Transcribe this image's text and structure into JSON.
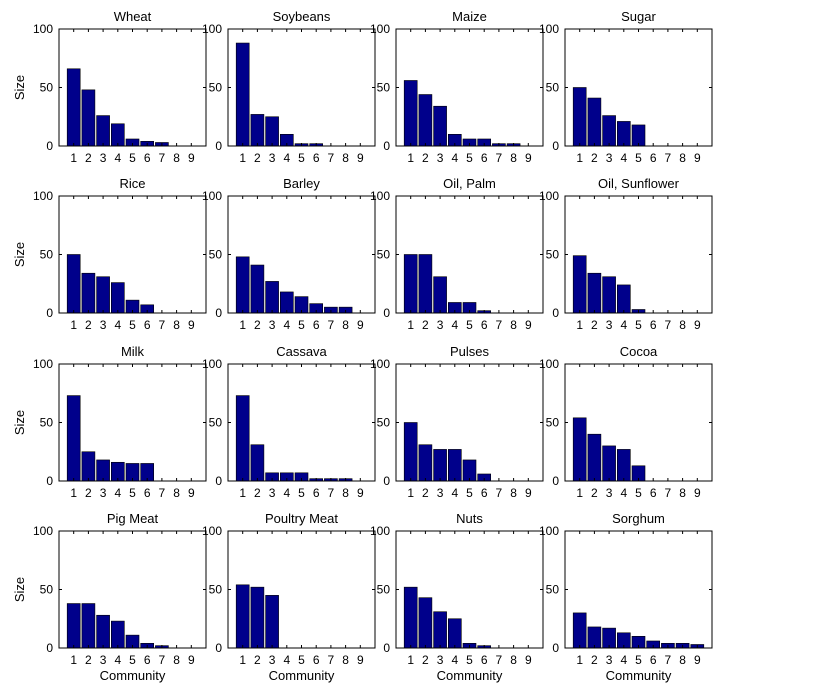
{
  "colors": {
    "bar": "#00008B",
    "bar_edge": "#000000",
    "axes": "#000000",
    "background": "#ffffff"
  },
  "chart_data": [
    {
      "type": "bar",
      "title": "Wheat",
      "categories": [
        "1",
        "2",
        "3",
        "4",
        "5",
        "6",
        "7",
        "8",
        "9"
      ],
      "values": [
        66,
        48,
        26,
        19,
        6,
        4,
        3,
        0,
        0
      ],
      "ylim": [
        0,
        100
      ],
      "yticks": [
        0,
        50,
        100
      ],
      "xlabel": "",
      "ylabel": "Size",
      "grid": false
    },
    {
      "type": "bar",
      "title": "Soybeans",
      "categories": [
        "1",
        "2",
        "3",
        "4",
        "5",
        "6",
        "7",
        "8",
        "9"
      ],
      "values": [
        88,
        27,
        25,
        10,
        2,
        2,
        0,
        0,
        0
      ],
      "ylim": [
        0,
        100
      ],
      "yticks": [
        0,
        50,
        100
      ],
      "xlabel": "",
      "ylabel": "",
      "grid": false
    },
    {
      "type": "bar",
      "title": "Maize",
      "categories": [
        "1",
        "2",
        "3",
        "4",
        "5",
        "6",
        "7",
        "8",
        "9"
      ],
      "values": [
        56,
        44,
        34,
        10,
        6,
        6,
        2,
        2,
        0
      ],
      "ylim": [
        0,
        100
      ],
      "yticks": [
        0,
        50,
        100
      ],
      "xlabel": "",
      "ylabel": "",
      "grid": false
    },
    {
      "type": "bar",
      "title": "Sugar",
      "categories": [
        "1",
        "2",
        "3",
        "4",
        "5",
        "6",
        "7",
        "8",
        "9"
      ],
      "values": [
        50,
        41,
        26,
        21,
        18,
        0,
        0,
        0,
        0
      ],
      "ylim": [
        0,
        100
      ],
      "yticks": [
        0,
        50,
        100
      ],
      "xlabel": "",
      "ylabel": "",
      "grid": false
    },
    {
      "type": "bar",
      "title": "Rice",
      "categories": [
        "1",
        "2",
        "3",
        "4",
        "5",
        "6",
        "7",
        "8",
        "9"
      ],
      "values": [
        50,
        34,
        31,
        26,
        11,
        7,
        0,
        0,
        0
      ],
      "ylim": [
        0,
        100
      ],
      "yticks": [
        0,
        50,
        100
      ],
      "xlabel": "",
      "ylabel": "Size",
      "grid": false
    },
    {
      "type": "bar",
      "title": "Barley",
      "categories": [
        "1",
        "2",
        "3",
        "4",
        "5",
        "6",
        "7",
        "8",
        "9"
      ],
      "values": [
        48,
        41,
        27,
        18,
        14,
        8,
        5,
        5,
        0
      ],
      "ylim": [
        0,
        100
      ],
      "yticks": [
        0,
        50,
        100
      ],
      "xlabel": "",
      "ylabel": "",
      "grid": false
    },
    {
      "type": "bar",
      "title": "Oil, Palm",
      "categories": [
        "1",
        "2",
        "3",
        "4",
        "5",
        "6",
        "7",
        "8",
        "9"
      ],
      "values": [
        50,
        50,
        31,
        9,
        9,
        2,
        0,
        0,
        0
      ],
      "ylim": [
        0,
        100
      ],
      "yticks": [
        0,
        50,
        100
      ],
      "xlabel": "",
      "ylabel": "",
      "grid": false
    },
    {
      "type": "bar",
      "title": "Oil, Sunflower",
      "categories": [
        "1",
        "2",
        "3",
        "4",
        "5",
        "6",
        "7",
        "8",
        "9"
      ],
      "values": [
        49,
        34,
        31,
        24,
        3,
        0,
        0,
        0,
        0
      ],
      "ylim": [
        0,
        100
      ],
      "yticks": [
        0,
        50,
        100
      ],
      "xlabel": "",
      "ylabel": "",
      "grid": false
    },
    {
      "type": "bar",
      "title": "Milk",
      "categories": [
        "1",
        "2",
        "3",
        "4",
        "5",
        "6",
        "7",
        "8",
        "9"
      ],
      "values": [
        73,
        25,
        18,
        16,
        15,
        15,
        0,
        0,
        0
      ],
      "ylim": [
        0,
        100
      ],
      "yticks": [
        0,
        50,
        100
      ],
      "xlabel": "",
      "ylabel": "Size",
      "grid": false
    },
    {
      "type": "bar",
      "title": "Cassava",
      "categories": [
        "1",
        "2",
        "3",
        "4",
        "5",
        "6",
        "7",
        "8",
        "9"
      ],
      "values": [
        73,
        31,
        7,
        7,
        7,
        2,
        2,
        2,
        0
      ],
      "ylim": [
        0,
        100
      ],
      "yticks": [
        0,
        50,
        100
      ],
      "xlabel": "",
      "ylabel": "",
      "grid": false
    },
    {
      "type": "bar",
      "title": "Pulses",
      "categories": [
        "1",
        "2",
        "3",
        "4",
        "5",
        "6",
        "7",
        "8",
        "9"
      ],
      "values": [
        50,
        31,
        27,
        27,
        18,
        6,
        0,
        0,
        0
      ],
      "ylim": [
        0,
        100
      ],
      "yticks": [
        0,
        50,
        100
      ],
      "xlabel": "",
      "ylabel": "",
      "grid": false
    },
    {
      "type": "bar",
      "title": "Cocoa",
      "categories": [
        "1",
        "2",
        "3",
        "4",
        "5",
        "6",
        "7",
        "8",
        "9"
      ],
      "values": [
        54,
        40,
        30,
        27,
        13,
        0,
        0,
        0,
        0
      ],
      "ylim": [
        0,
        100
      ],
      "yticks": [
        0,
        50,
        100
      ],
      "xlabel": "",
      "ylabel": "",
      "grid": false
    },
    {
      "type": "bar",
      "title": "Pig Meat",
      "categories": [
        "1",
        "2",
        "3",
        "4",
        "5",
        "6",
        "7",
        "8",
        "9"
      ],
      "values": [
        38,
        38,
        28,
        23,
        11,
        4,
        2,
        0,
        0
      ],
      "ylim": [
        0,
        100
      ],
      "yticks": [
        0,
        50,
        100
      ],
      "xlabel": "Community",
      "ylabel": "Size",
      "grid": false
    },
    {
      "type": "bar",
      "title": "Poultry Meat",
      "categories": [
        "1",
        "2",
        "3",
        "4",
        "5",
        "6",
        "7",
        "8",
        "9"
      ],
      "values": [
        54,
        52,
        45,
        0,
        0,
        0,
        0,
        0,
        0
      ],
      "ylim": [
        0,
        100
      ],
      "yticks": [
        0,
        50,
        100
      ],
      "xlabel": "Community",
      "ylabel": "",
      "grid": false
    },
    {
      "type": "bar",
      "title": "Nuts",
      "categories": [
        "1",
        "2",
        "3",
        "4",
        "5",
        "6",
        "7",
        "8",
        "9"
      ],
      "values": [
        52,
        43,
        31,
        25,
        4,
        2,
        0,
        0,
        0
      ],
      "ylim": [
        0,
        100
      ],
      "yticks": [
        0,
        50,
        100
      ],
      "xlabel": "Community",
      "ylabel": "",
      "grid": false
    },
    {
      "type": "bar",
      "title": "Sorghum",
      "categories": [
        "1",
        "2",
        "3",
        "4",
        "5",
        "6",
        "7",
        "8",
        "9"
      ],
      "values": [
        30,
        18,
        17,
        13,
        10,
        6,
        4,
        4,
        3
      ],
      "ylim": [
        0,
        100
      ],
      "yticks": [
        0,
        50,
        100
      ],
      "xlabel": "Community",
      "ylabel": "",
      "grid": false
    }
  ]
}
